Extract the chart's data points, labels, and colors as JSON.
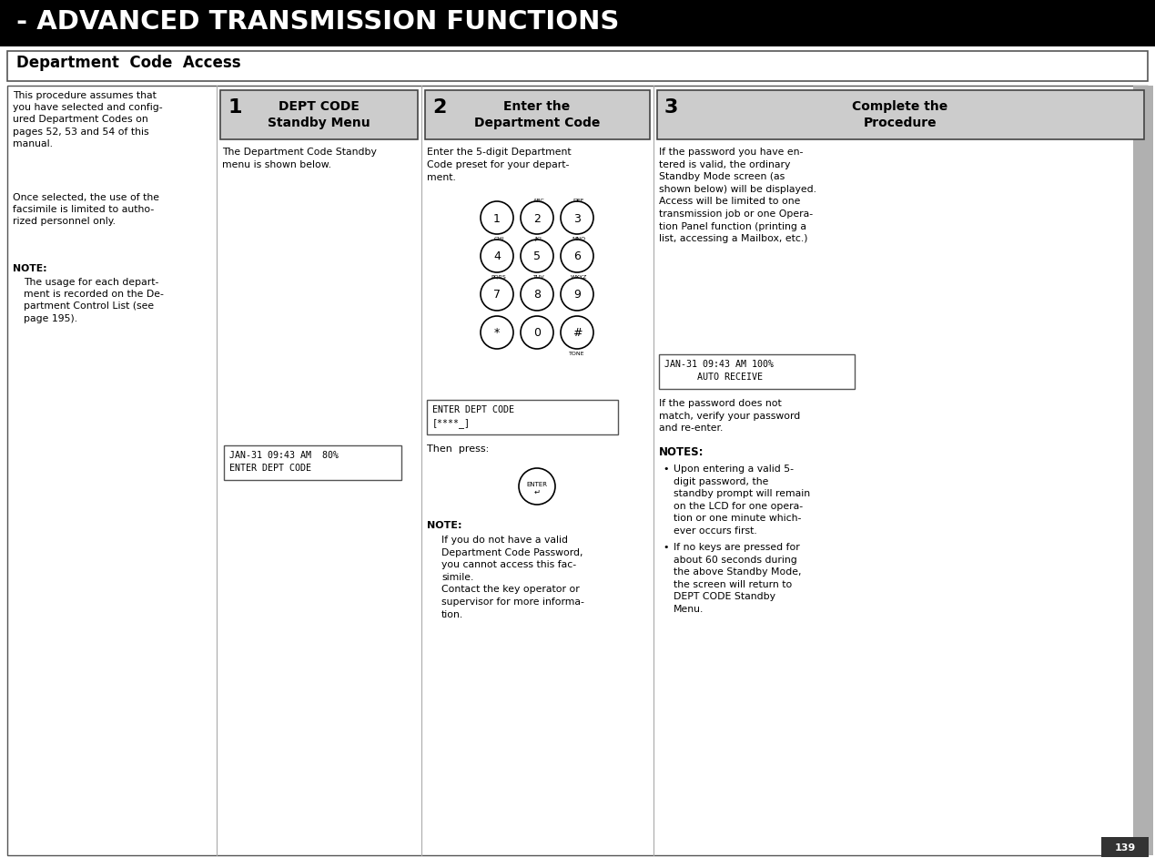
{
  "title": "- ADVANCED TRANSMISSION FUNCTIONS",
  "subtitle": "Department  Code  Access",
  "page_number": "139",
  "col0_texts": [
    "This procedure assumes that\nyou have selected and config-\nured Department Codes on\npages 52, 53 and 54 of this\nmanual.",
    "Once selected, the use of the\nfacsimile is limited to autho-\nrized personnel only.",
    "NOTE:\n   The usage for each depart-\n   ment is recorded on the De-\n   partment Control List (see\n   page 195)."
  ],
  "step1_num": "1",
  "step1_title": "DEPT CODE\nStandby Menu",
  "step1_body": "The Department Code Standby\nmenu is shown below.",
  "step1_lcd": "JAN-31 09:43 AM  80%\nENTER DEPT CODE",
  "step2_num": "2",
  "step2_title": "Enter the\nDepartment Code",
  "step2_body": "Enter the 5-digit Department\nCode preset for your depart-\nment.",
  "step2_lcd_line1": "ENTER DEPT CODE",
  "step2_lcd_line2": "[****_]",
  "step2_then": "Then  press:",
  "step2_note_title": "NOTE:",
  "step2_note_body": "If you do not have a valid\nDepartment Code Password,\nyou cannot access this fac-\nsimile.\nContact the key operator or\nsupervisor for more informa-\ntion.",
  "step3_num": "3",
  "step3_title": "Complete the\nProcedure",
  "step3_body1": "If the password you have en-\ntered is valid, the ordinary\nStandby Mode screen (as\nshown below) will be displayed.\nAccess will be limited to one\ntransmission job or one Opera-\ntion Panel function (printing a\nlist, accessing a Mailbox, etc.)",
  "step3_lcd_line1": "JAN-31 09:43 AM 100%",
  "step3_lcd_line2": "      AUTO RECEIVE",
  "step3_body2": "If the password does not\nmatch, verify your password\nand re-enter.",
  "step3_notes_title": "NOTES:",
  "step3_note1": "Upon entering a valid 5-\ndigit password, the\nstandby prompt will remain\non the LCD for one opera-\ntion or one minute which-\never occurs first.",
  "step3_note2": "If no keys are pressed for\nabout 60 seconds during\nthe above Standby Mode,\nthe screen will return to\nDEPT CODE Standby\nMenu.",
  "keypad_rows": [
    [
      [
        "1",
        ""
      ],
      [
        "2",
        "ABC"
      ],
      [
        "3",
        "DEF"
      ]
    ],
    [
      [
        "4",
        "GHI"
      ],
      [
        "5",
        "JKL"
      ],
      [
        "6",
        "MNO"
      ]
    ],
    [
      [
        "7",
        "PQRS"
      ],
      [
        "8",
        "TUV"
      ],
      [
        "9",
        "WXYZ"
      ]
    ],
    [
      [
        "*",
        ""
      ],
      [
        "0",
        ""
      ],
      [
        "#",
        "TONE"
      ]
    ]
  ],
  "sidebar_color": "#b0b0b0",
  "header_bg": "#000000",
  "header_fg": "#ffffff",
  "step_header_bg": "#cccccc",
  "step_header_ec": "#444444",
  "lcd_ec": "#555555"
}
